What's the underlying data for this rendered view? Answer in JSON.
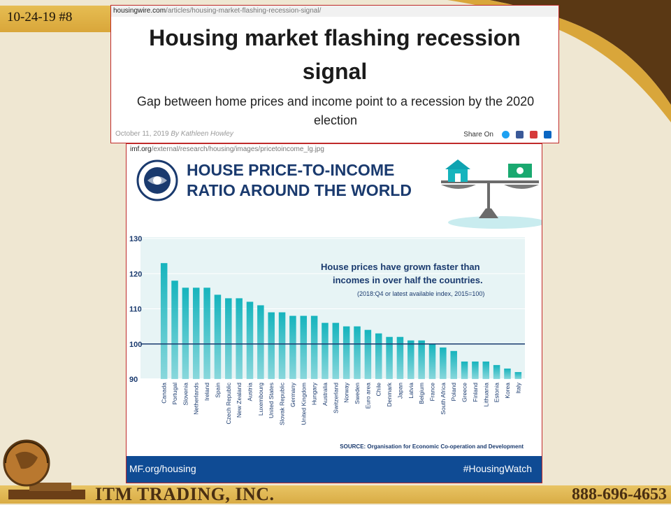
{
  "slide": {
    "tag": "10-24-19 #8",
    "company": "ITM TRADING, INC.",
    "phone": "888-696-4653"
  },
  "article": {
    "url_domain": "housingwire.com",
    "url_path": "/articles/housing-market-flashing-recession-signal/",
    "title": "Housing market flashing recession signal",
    "subtitle": "Gap between home prices and income point to a recession by the 2020 election",
    "date": "October 11, 2019",
    "byline": "By Kathleen Howley",
    "share_label": "Share On",
    "share_icons": [
      "twitter-icon",
      "facebook-icon",
      "email-icon",
      "linkedin-icon"
    ],
    "share_colors": [
      "#1da1f2",
      "#3b5998",
      "#d63a3a",
      "#0a66c2"
    ]
  },
  "imf": {
    "url_domain": "imf.org",
    "url_path": "/external/research/housing/images/pricetoincome_lg.jpg",
    "title_line1": "HOUSE PRICE-TO-INCOME",
    "title_line2": "RATIO AROUND THE WORLD",
    "annotation_line1": "House prices have grown faster than",
    "annotation_line2": "incomes in over half the countries.",
    "annotation_line3": "(2018:Q4 or latest available index, 2015=100)",
    "source": "SOURCE: Organisation for Economic Co-operation and Development",
    "footer_left": "MF.org/housing",
    "footer_right": "#HousingWatch",
    "colors": {
      "bar": "#16b4bd",
      "title": "#1a3a6e",
      "footer": "#0f4b94",
      "plot_bg": "#e7f4f5"
    }
  },
  "chart_data": {
    "type": "bar",
    "categories": [
      "Canada",
      "Portugal",
      "Slovenia",
      "Netherlands",
      "Ireland",
      "Spain",
      "Czech Republic",
      "New Zealand",
      "Austria",
      "Luxembourg",
      "United States",
      "Slovak Republic",
      "Germany",
      "United Kingdom",
      "Hungary",
      "Australia",
      "Switzerland",
      "Norway",
      "Sweden",
      "Euro area",
      "Chile",
      "Denmark",
      "Japan",
      "Latvia",
      "Belgium",
      "France",
      "South Africa",
      "Poland",
      "Greece",
      "Finland",
      "Lithuania",
      "Estonia",
      "Korea",
      "Italy"
    ],
    "values": [
      123,
      118,
      116,
      116,
      116,
      114,
      113,
      113,
      112,
      111,
      109,
      109,
      108,
      108,
      108,
      106,
      106,
      105,
      105,
      104,
      103,
      102,
      102,
      101,
      101,
      100,
      99,
      98,
      95,
      95,
      95,
      94,
      93,
      92
    ],
    "yticks": [
      90,
      100,
      110,
      120,
      130
    ],
    "ylim": [
      90,
      130
    ],
    "reference_line": 100,
    "grid": true
  }
}
